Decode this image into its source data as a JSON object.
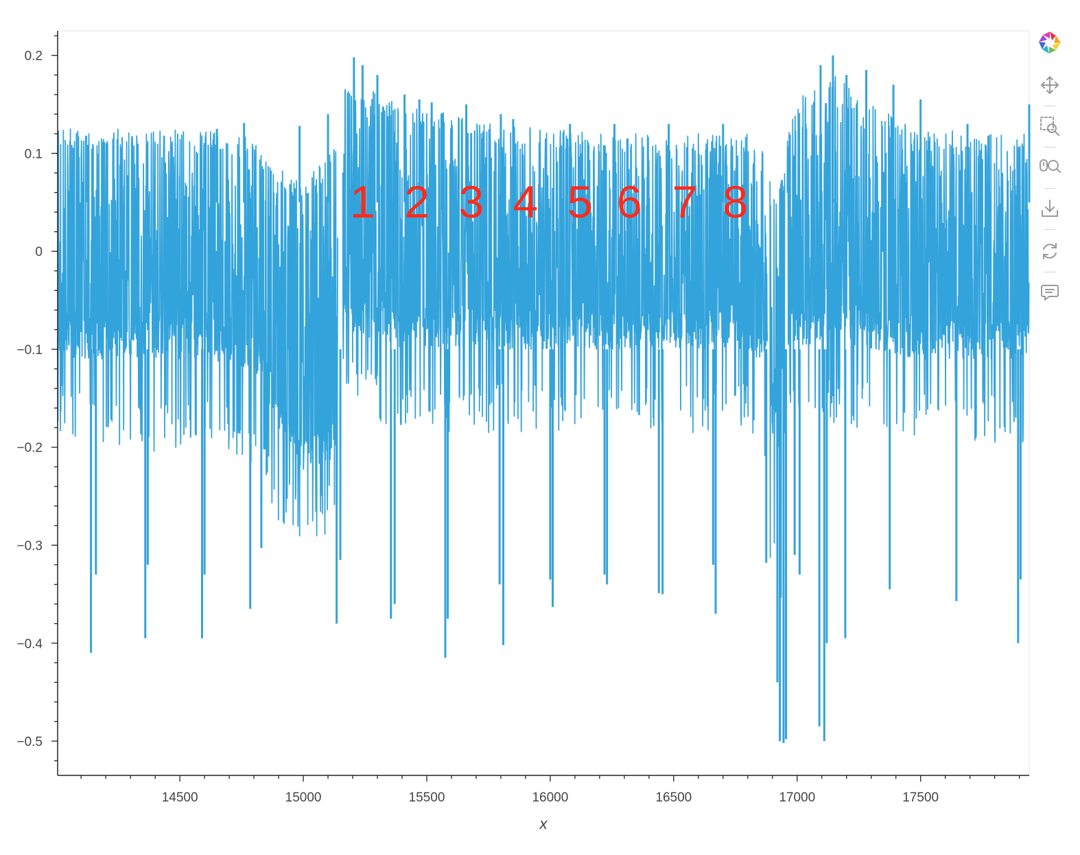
{
  "chart_data": {
    "type": "line",
    "xlabel": "x",
    "ylabel": "",
    "xlim": [
      14005,
      17940
    ],
    "ylim": [
      -0.535,
      0.225
    ],
    "x_ticks": [
      14500,
      15000,
      15500,
      16000,
      16500,
      17000,
      17500
    ],
    "x_tick_labels": [
      "14500",
      "15000",
      "15500",
      "16000",
      "16500",
      "17000",
      "17500"
    ],
    "y_ticks": [
      0.2,
      0.1,
      0,
      -0.1,
      -0.2,
      -0.3,
      -0.4,
      -0.5
    ],
    "y_tick_labels": [
      "0.2",
      "0.1",
      "0",
      "−0.1",
      "−0.2",
      "−0.3",
      "−0.4",
      "−0.5"
    ],
    "grid": false,
    "series_color": "#33a3db",
    "series": [
      {
        "name": "",
        "segments": [
          {
            "x": [
              14005,
              14200,
              14400,
              14600,
              14800,
              14900,
              15000,
              15140
            ],
            "upper": [
              0.115,
              0.115,
              0.115,
              0.115,
              0.11,
              0.075,
              0.06,
              0.1
            ],
            "lower": [
              -0.09,
              -0.09,
              -0.09,
              -0.09,
              -0.1,
              -0.16,
              -0.21,
              -0.19
            ],
            "spike_lo": [
              -0.16,
              -0.17,
              -0.18,
              -0.17,
              -0.2,
              -0.25,
              -0.27,
              -0.26
            ]
          },
          {
            "x": [
              15160,
              15250,
              15400,
              15600,
              15800,
              16000,
              16200,
              16400,
              16600,
              16800,
              16880
            ],
            "upper": [
              0.17,
              0.16,
              0.14,
              0.13,
              0.12,
              0.115,
              0.11,
              0.11,
              0.11,
              0.11,
              0.09
            ],
            "lower": [
              -0.06,
              -0.07,
              -0.08,
              -0.08,
              -0.08,
              -0.08,
              -0.08,
              -0.08,
              -0.08,
              -0.08,
              -0.1
            ],
            "spike_lo": [
              -0.13,
              -0.14,
              -0.16,
              -0.16,
              -0.16,
              -0.16,
              -0.16,
              -0.16,
              -0.16,
              -0.16,
              -0.19
            ]
          },
          {
            "x": [
              16890,
              16950
            ],
            "upper": [
              0.07,
              0.07
            ],
            "lower": [
              -0.16,
              -0.2
            ],
            "spike_lo": [
              -0.3,
              -0.35
            ]
          },
          {
            "x": [
              16960,
              17150,
              17300,
              17500,
              17700,
              17940
            ],
            "upper": [
              0.14,
              0.17,
              0.14,
              0.12,
              0.11,
              0.11
            ],
            "lower": [
              -0.08,
              -0.07,
              -0.08,
              -0.09,
              -0.09,
              -0.09
            ],
            "spike_lo": [
              -0.15,
              -0.15,
              -0.16,
              -0.17,
              -0.17,
              -0.17
            ]
          }
        ],
        "big_dips": [
          {
            "x": 14140,
            "y": -0.41
          },
          {
            "x": 14160,
            "y": -0.33
          },
          {
            "x": 14360,
            "y": -0.395
          },
          {
            "x": 14370,
            "y": -0.32
          },
          {
            "x": 14590,
            "y": -0.395
          },
          {
            "x": 14600,
            "y": -0.33
          },
          {
            "x": 14785,
            "y": -0.365
          },
          {
            "x": 14830,
            "y": -0.303
          },
          {
            "x": 15135,
            "y": -0.38
          },
          {
            "x": 15150,
            "y": -0.315
          },
          {
            "x": 15355,
            "y": -0.375
          },
          {
            "x": 15370,
            "y": -0.36
          },
          {
            "x": 15575,
            "y": -0.415
          },
          {
            "x": 15585,
            "y": -0.375
          },
          {
            "x": 15795,
            "y": -0.34
          },
          {
            "x": 15810,
            "y": -0.402
          },
          {
            "x": 16000,
            "y": -0.335
          },
          {
            "x": 16010,
            "y": -0.363
          },
          {
            "x": 16220,
            "y": -0.33
          },
          {
            "x": 16230,
            "y": -0.34
          },
          {
            "x": 16440,
            "y": -0.349
          },
          {
            "x": 16455,
            "y": -0.35
          },
          {
            "x": 16670,
            "y": -0.37
          },
          {
            "x": 16660,
            "y": -0.32
          },
          {
            "x": 16875,
            "y": -0.318
          },
          {
            "x": 16920,
            "y": -0.44
          },
          {
            "x": 16930,
            "y": -0.5
          },
          {
            "x": 16945,
            "y": -0.502
          },
          {
            "x": 16955,
            "y": -0.498
          },
          {
            "x": 16990,
            "y": -0.31
          },
          {
            "x": 17010,
            "y": -0.33
          },
          {
            "x": 17090,
            "y": -0.485
          },
          {
            "x": 17110,
            "y": -0.5
          },
          {
            "x": 17120,
            "y": -0.4
          },
          {
            "x": 17195,
            "y": -0.395
          },
          {
            "x": 17375,
            "y": -0.345
          },
          {
            "x": 17645,
            "y": -0.357
          },
          {
            "x": 17895,
            "y": -0.4
          },
          {
            "x": 17905,
            "y": -0.335
          }
        ],
        "peaks": [
          {
            "x": 15205,
            "y": 0.198
          },
          {
            "x": 15240,
            "y": 0.19
          },
          {
            "x": 15300,
            "y": 0.18
          },
          {
            "x": 15410,
            "y": 0.16
          },
          {
            "x": 15470,
            "y": 0.155
          },
          {
            "x": 15520,
            "y": 0.152
          },
          {
            "x": 15660,
            "y": 0.15
          },
          {
            "x": 15800,
            "y": 0.14
          },
          {
            "x": 15850,
            "y": 0.135
          },
          {
            "x": 16080,
            "y": 0.13
          },
          {
            "x": 16260,
            "y": 0.13
          },
          {
            "x": 16480,
            "y": 0.13
          },
          {
            "x": 16700,
            "y": 0.13
          },
          {
            "x": 15100,
            "y": 0.14
          },
          {
            "x": 14985,
            "y": 0.128
          },
          {
            "x": 14120,
            "y": 0.118
          },
          {
            "x": 14650,
            "y": 0.125
          },
          {
            "x": 14760,
            "y": 0.131
          },
          {
            "x": 17095,
            "y": 0.19
          },
          {
            "x": 17145,
            "y": 0.2
          },
          {
            "x": 17200,
            "y": 0.18
          },
          {
            "x": 17280,
            "y": 0.185
          },
          {
            "x": 17390,
            "y": 0.17
          },
          {
            "x": 17500,
            "y": 0.155
          },
          {
            "x": 17690,
            "y": 0.13
          },
          {
            "x": 17940,
            "y": 0.15
          }
        ]
      }
    ],
    "annotations": [
      {
        "text": "1",
        "x": 15240,
        "y": 0.05
      },
      {
        "text": "2",
        "x": 15460,
        "y": 0.05
      },
      {
        "text": "3",
        "x": 15680,
        "y": 0.05
      },
      {
        "text": "4",
        "x": 15900,
        "y": 0.05
      },
      {
        "text": "5",
        "x": 16120,
        "y": 0.05
      },
      {
        "text": "6",
        "x": 16320,
        "y": 0.05
      },
      {
        "text": "7",
        "x": 16545,
        "y": 0.05
      },
      {
        "text": "8",
        "x": 16750,
        "y": 0.05
      }
    ],
    "annotation_color": "#ff2a1a"
  },
  "toolbar": {
    "items": [
      {
        "name": "bokeh-logo-icon"
      },
      {
        "name": "pan-tool-icon"
      },
      {
        "name": "box-zoom-tool-icon"
      },
      {
        "name": "wheel-zoom-tool-icon"
      },
      {
        "name": "save-tool-icon"
      },
      {
        "name": "reset-tool-icon"
      },
      {
        "name": "hover-tool-icon"
      }
    ]
  }
}
